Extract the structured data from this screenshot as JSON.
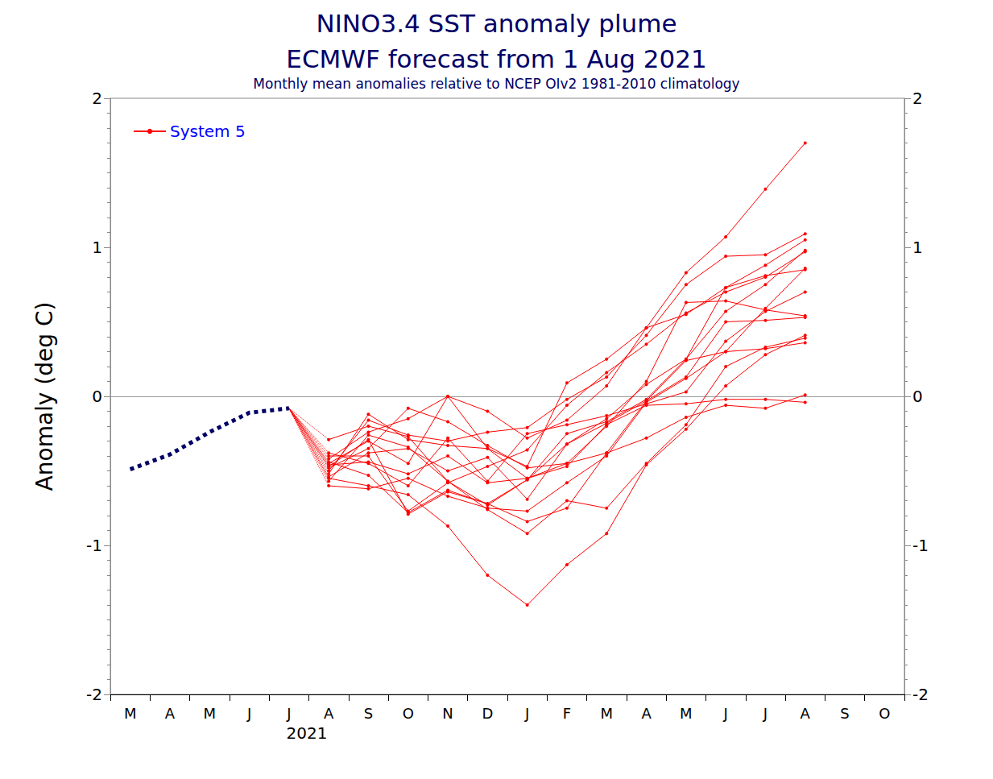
{
  "chart_data": {
    "type": "line",
    "title": "NINO3.4 SST anomaly plume\nECMWF forecast from 1 Aug 2021",
    "subtitle": "Monthly mean anomalies relative to NCEP OIv2 1981-2010 climatology",
    "y_label": "Anomaly (deg C)",
    "annotations": [
      "2021"
    ],
    "categories": [
      "M",
      "A",
      "M",
      "J",
      "J",
      "A",
      "S",
      "O",
      "N",
      "D",
      "J",
      "F",
      "M",
      "A",
      "M",
      "J",
      "J",
      "A",
      "S",
      "O"
    ],
    "ylim": [
      -2,
      2
    ],
    "yticks": [
      -2,
      -1,
      0,
      1,
      2
    ],
    "grid": false,
    "legend": "top-left",
    "series": [
      {
        "color": "#000066",
        "marker": "none",
        "line_style": "dotted",
        "values": [
          -0.49,
          -0.39,
          -0.24,
          -0.11,
          -0.08,
          null,
          null,
          null,
          null,
          null,
          null,
          null,
          null,
          null,
          null,
          null,
          null,
          null,
          null,
          null
        ]
      },
      {
        "name": "System 5",
        "color": "#ff0000",
        "marker": "circle",
        "line_style": "solid",
        "values": [
          null,
          null,
          null,
          null,
          null,
          -0.45,
          -0.3,
          -0.45,
          0.0,
          -0.35,
          -0.47,
          0.09,
          0.25,
          0.46,
          0.83,
          1.07,
          1.39,
          1.7,
          null,
          null
        ]
      },
      {
        "name": "System 5",
        "color": "#ff0000",
        "marker": "circle",
        "line_style": "solid",
        "values": [
          null,
          null,
          null,
          null,
          null,
          -0.55,
          -0.6,
          -0.66,
          -0.87,
          -1.2,
          -1.4,
          -1.13,
          -0.92,
          -0.46,
          -0.22,
          0.07,
          0.28,
          0.41,
          null,
          null
        ]
      },
      {
        "name": "System 5",
        "color": "#ff0000",
        "marker": "circle",
        "line_style": "solid",
        "values": [
          null,
          null,
          null,
          null,
          null,
          -0.29,
          -0.2,
          -0.27,
          -0.57,
          -0.76,
          -0.92,
          -0.7,
          -0.75,
          -0.45,
          -0.19,
          0.2,
          0.33,
          0.39,
          null,
          null
        ]
      },
      {
        "name": "System 5",
        "color": "#ff0000",
        "marker": "circle",
        "line_style": "solid",
        "values": [
          null,
          null,
          null,
          null,
          null,
          -0.5,
          -0.16,
          -0.26,
          -0.3,
          -0.24,
          -0.21,
          -0.02,
          0.13,
          0.41,
          0.75,
          0.94,
          0.95,
          1.09,
          null,
          null
        ]
      },
      {
        "name": "System 5",
        "color": "#ff0000",
        "marker": "circle",
        "line_style": "solid",
        "values": [
          null,
          null,
          null,
          null,
          null,
          -0.42,
          -0.24,
          -0.15,
          0.0,
          -0.1,
          -0.28,
          -0.16,
          0.07,
          0.46,
          0.55,
          0.73,
          0.88,
          1.05,
          null,
          null
        ]
      },
      {
        "name": "System 5",
        "color": "#ff0000",
        "marker": "circle",
        "line_style": "solid",
        "values": [
          null,
          null,
          null,
          null,
          null,
          -0.48,
          -0.35,
          -0.08,
          -0.17,
          -0.33,
          -0.48,
          -0.45,
          -0.2,
          0.1,
          0.63,
          0.64,
          0.58,
          0.54,
          null,
          null
        ]
      },
      {
        "name": "System 5",
        "color": "#ff0000",
        "marker": "circle",
        "line_style": "solid",
        "values": [
          null,
          null,
          null,
          null,
          null,
          -0.57,
          -0.26,
          -0.34,
          -0.57,
          -0.73,
          -0.56,
          -0.32,
          -0.15,
          0.08,
          0.25,
          0.57,
          0.75,
          0.98,
          null,
          null
        ]
      },
      {
        "name": "System 5",
        "color": "#ff0000",
        "marker": "circle",
        "line_style": "solid",
        "values": [
          null,
          null,
          null,
          null,
          null,
          -0.4,
          -0.4,
          -0.77,
          -0.58,
          -0.47,
          -0.36,
          -0.06,
          0.16,
          0.35,
          0.56,
          0.7,
          0.8,
          0.97,
          null,
          null
        ]
      },
      {
        "name": "System 5",
        "color": "#ff0000",
        "marker": "circle",
        "line_style": "solid",
        "values": [
          null,
          null,
          null,
          null,
          null,
          -0.46,
          -0.44,
          -0.52,
          -0.4,
          -0.58,
          -0.55,
          -0.45,
          -0.38,
          -0.03,
          0.13,
          0.5,
          0.51,
          0.53,
          null,
          null
        ]
      },
      {
        "name": "System 5",
        "color": "#ff0000",
        "marker": "circle",
        "line_style": "solid",
        "values": [
          null,
          null,
          null,
          null,
          null,
          -0.6,
          -0.62,
          -0.55,
          -0.67,
          -0.75,
          -0.77,
          -0.58,
          -0.4,
          -0.04,
          0.12,
          0.3,
          0.59,
          0.86,
          null,
          null
        ]
      },
      {
        "name": "System 5",
        "color": "#ff0000",
        "marker": "circle",
        "line_style": "solid",
        "values": [
          null,
          null,
          null,
          null,
          null,
          -0.52,
          -0.12,
          -0.29,
          -0.33,
          -0.35,
          -0.55,
          -0.47,
          -0.19,
          -0.06,
          -0.05,
          -0.02,
          -0.02,
          -0.04,
          null,
          null
        ]
      },
      {
        "name": "System 5",
        "color": "#ff0000",
        "marker": "circle",
        "line_style": "solid",
        "values": [
          null,
          null,
          null,
          null,
          null,
          -0.38,
          -0.45,
          -0.6,
          -0.28,
          -0.57,
          -0.25,
          -0.19,
          -0.13,
          -0.05,
          0.03,
          0.37,
          0.57,
          0.7,
          null,
          null
        ]
      },
      {
        "name": "System 5",
        "color": "#ff0000",
        "marker": "circle",
        "line_style": "solid",
        "values": [
          null,
          null,
          null,
          null,
          null,
          -0.44,
          -0.53,
          -0.78,
          -0.63,
          -0.72,
          -0.84,
          -0.75,
          -0.38,
          -0.28,
          -0.14,
          -0.06,
          -0.08,
          0.01,
          null,
          null
        ]
      },
      {
        "name": "System 5",
        "color": "#ff0000",
        "marker": "circle",
        "line_style": "solid",
        "values": [
          null,
          null,
          null,
          null,
          null,
          -0.54,
          -0.38,
          -0.35,
          -0.5,
          -0.41,
          -0.69,
          -0.32,
          -0.18,
          -0.03,
          0.24,
          0.3,
          0.32,
          0.36,
          null,
          null
        ]
      },
      {
        "name": "System 5",
        "color": "#ff0000",
        "marker": "circle",
        "line_style": "solid",
        "values": [
          null,
          null,
          null,
          null,
          null,
          -0.47,
          -0.29,
          -0.79,
          -0.64,
          -0.72,
          -0.56,
          -0.25,
          -0.17,
          -0.02,
          0.25,
          0.73,
          0.81,
          0.85,
          null,
          null
        ]
      }
    ]
  }
}
